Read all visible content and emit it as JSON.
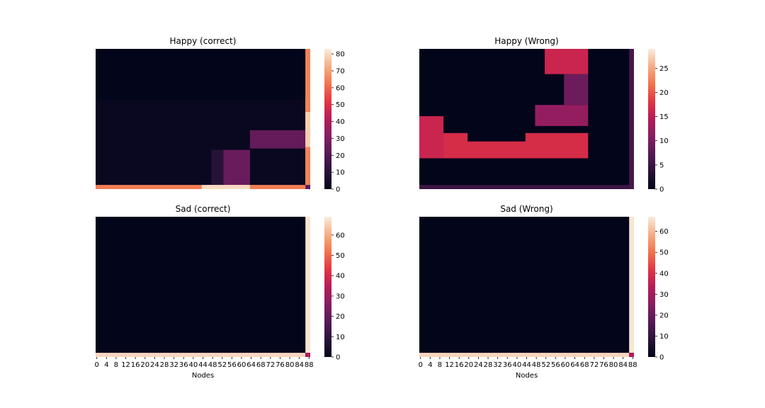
{
  "chart_data": [
    {
      "type": "heatmap",
      "title": "Happy (correct)",
      "xlabel": "",
      "colorbar": {
        "min": 0,
        "max": 83,
        "ticks": [
          0,
          10,
          20,
          30,
          40,
          50,
          60,
          70,
          80
        ]
      },
      "x_ticks": [],
      "grid": false,
      "regions": [
        {
          "x0": 0,
          "x1": 87,
          "y0": 0,
          "y1": 1,
          "value": 2
        },
        {
          "x0": 0,
          "x1": 87,
          "y0": 0,
          "y1": 0.36,
          "value": 0
        },
        {
          "x0": 64,
          "x1": 87,
          "y0": 0.58,
          "y1": 0.71,
          "value": 24
        },
        {
          "x0": 52,
          "x1": 64,
          "y0": 0.72,
          "y1": 0.97,
          "value": 25
        },
        {
          "x0": 48,
          "x1": 53,
          "y0": 0.72,
          "y1": 0.97,
          "value": 10
        },
        {
          "x0": 87,
          "x1": 89,
          "y0": 0,
          "y1": 0.97,
          "value": 65
        },
        {
          "x0": 87,
          "x1": 89,
          "y0": 0.45,
          "y1": 0.7,
          "value": 78
        },
        {
          "x0": 0,
          "x1": 87,
          "y0": 0.97,
          "y1": 1,
          "value": 64
        },
        {
          "x0": 44,
          "x1": 64,
          "y0": 0.97,
          "y1": 1,
          "value": 80
        },
        {
          "x0": 87,
          "x1": 89,
          "y0": 0.97,
          "y1": 1,
          "value": 22
        }
      ]
    },
    {
      "type": "heatmap",
      "title": "Happy (Wrong)",
      "xlabel": "",
      "colorbar": {
        "min": 0,
        "max": 29,
        "ticks": [
          0,
          5,
          10,
          15,
          20,
          25
        ]
      },
      "x_ticks": [],
      "grid": false,
      "regions": [
        {
          "x0": 0,
          "x1": 89,
          "y0": 0,
          "y1": 1,
          "value": 0
        },
        {
          "x0": 52,
          "x1": 70,
          "y0": 0,
          "y1": 0.18,
          "value": 16
        },
        {
          "x0": 60,
          "x1": 70,
          "y0": 0.18,
          "y1": 0.4,
          "value": 9
        },
        {
          "x0": 48,
          "x1": 70,
          "y0": 0.4,
          "y1": 0.55,
          "value": 12
        },
        {
          "x0": 0,
          "x1": 10,
          "y0": 0.48,
          "y1": 0.78,
          "value": 16
        },
        {
          "x0": 10,
          "x1": 70,
          "y0": 0.6,
          "y1": 0.78,
          "value": 17
        },
        {
          "x0": 20,
          "x1": 44,
          "y0": 0.55,
          "y1": 0.66,
          "value": 0
        },
        {
          "x0": 87,
          "x1": 89,
          "y0": 0,
          "y1": 1,
          "value": 6
        },
        {
          "x0": 0,
          "x1": 87,
          "y0": 0.97,
          "y1": 1,
          "value": 5
        }
      ]
    },
    {
      "type": "heatmap",
      "title": "Sad (correct)",
      "xlabel": "Nodes",
      "colorbar": {
        "min": 0,
        "max": 69,
        "ticks": [
          0,
          10,
          20,
          30,
          40,
          50,
          60
        ]
      },
      "x_ticks": [
        0,
        4,
        8,
        12,
        16,
        20,
        24,
        28,
        32,
        36,
        40,
        44,
        48,
        52,
        56,
        60,
        64,
        68,
        72,
        76,
        80,
        84,
        88
      ],
      "grid": false,
      "regions": [
        {
          "x0": 0,
          "x1": 89,
          "y0": 0,
          "y1": 1,
          "value": 0
        },
        {
          "x0": 87,
          "x1": 89,
          "y0": 0,
          "y1": 0.97,
          "value": 68
        },
        {
          "x0": 0,
          "x1": 87,
          "y0": 0.97,
          "y1": 1,
          "value": 66
        },
        {
          "x0": 87,
          "x1": 89,
          "y0": 0.97,
          "y1": 1,
          "value": 33
        }
      ]
    },
    {
      "type": "heatmap",
      "title": "Sad (Wrong)",
      "xlabel": "Nodes",
      "colorbar": {
        "min": 0,
        "max": 67,
        "ticks": [
          0,
          10,
          20,
          30,
          40,
          50,
          60
        ]
      },
      "x_ticks": [
        0,
        4,
        8,
        12,
        16,
        20,
        24,
        28,
        32,
        36,
        40,
        44,
        48,
        52,
        56,
        60,
        64,
        68,
        72,
        76,
        80,
        84,
        88
      ],
      "grid": false,
      "regions": [
        {
          "x0": 0,
          "x1": 89,
          "y0": 0,
          "y1": 1,
          "value": 0
        },
        {
          "x0": 87,
          "x1": 89,
          "y0": 0,
          "y1": 0.97,
          "value": 66
        },
        {
          "x0": 0,
          "x1": 87,
          "y0": 0.97,
          "y1": 1,
          "value": 64
        },
        {
          "x0": 87,
          "x1": 89,
          "y0": 0.97,
          "y1": 1,
          "value": 33
        }
      ]
    }
  ]
}
